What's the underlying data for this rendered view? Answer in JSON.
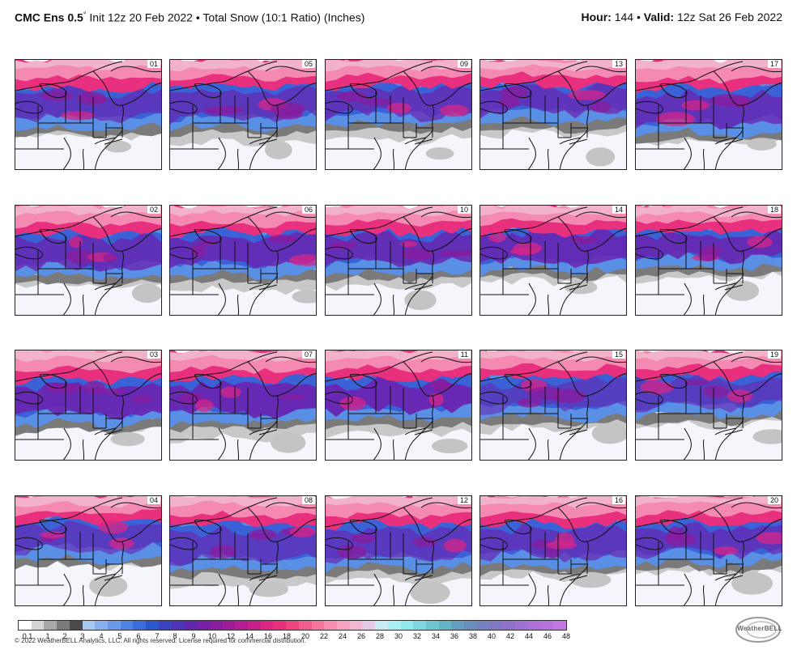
{
  "header": {
    "model_name": "CMC Ens 0.5",
    "degree_symbol": "°",
    "init_text": "Init 12z 20 Feb 2022",
    "bullet": "•",
    "product_text": "Total Snow (10:1 Ratio) (Inches)",
    "hour_label": "Hour:",
    "hour_value": "144",
    "valid_label": "Valid:",
    "valid_value": "12z Sat 26 Feb 2022"
  },
  "map": {
    "region": "Northeast United States",
    "panels": [
      {
        "member": "01",
        "row": 0,
        "col": 0
      },
      {
        "member": "05",
        "row": 0,
        "col": 1
      },
      {
        "member": "09",
        "row": 0,
        "col": 2
      },
      {
        "member": "13",
        "row": 0,
        "col": 3
      },
      {
        "member": "17",
        "row": 0,
        "col": 4
      },
      {
        "member": "02",
        "row": 1,
        "col": 0
      },
      {
        "member": "06",
        "row": 1,
        "col": 1
      },
      {
        "member": "10",
        "row": 1,
        "col": 2
      },
      {
        "member": "14",
        "row": 1,
        "col": 3
      },
      {
        "member": "18",
        "row": 1,
        "col": 4
      },
      {
        "member": "03",
        "row": 2,
        "col": 0
      },
      {
        "member": "07",
        "row": 2,
        "col": 1
      },
      {
        "member": "11",
        "row": 2,
        "col": 2
      },
      {
        "member": "15",
        "row": 2,
        "col": 3
      },
      {
        "member": "19",
        "row": 2,
        "col": 4
      },
      {
        "member": "04",
        "row": 3,
        "col": 0
      },
      {
        "member": "08",
        "row": 3,
        "col": 1
      },
      {
        "member": "12",
        "row": 3,
        "col": 2
      },
      {
        "member": "16",
        "row": 3,
        "col": 3
      },
      {
        "member": "20",
        "row": 3,
        "col": 4
      }
    ]
  },
  "legend": {
    "labels": [
      "0.1",
      "1",
      "2",
      "3",
      "4",
      "5",
      "6",
      "7",
      "8",
      "9",
      "10",
      "12",
      "14",
      "16",
      "18",
      "20",
      "22",
      "24",
      "26",
      "28",
      "30",
      "32",
      "34",
      "36",
      "38",
      "40",
      "42",
      "44",
      "46",
      "48"
    ],
    "colors": [
      "#ffffff",
      "#d6d6d6",
      "#a8a8a8",
      "#7a7a7a",
      "#4a4a4a",
      "#a8c8f4",
      "#88b0ef",
      "#6a98ea",
      "#5082e3",
      "#3a6cdb",
      "#2a58cf",
      "#3a44c2",
      "#4e34b8",
      "#6226ae",
      "#761ea6",
      "#8a1c9e",
      "#a01c98",
      "#b41e92",
      "#c8208a",
      "#dc2684",
      "#ea307c",
      "#f0447e",
      "#f25c8c",
      "#f4749c",
      "#f68cae",
      "#f6a2c0",
      "#f2b8d2",
      "#e6c8e8",
      "#c8ecf6",
      "#a8f0f4",
      "#92e6ec",
      "#7ed6e0",
      "#70c4d4",
      "#66b2c8",
      "#649ebe",
      "#6a8ebc",
      "#7482c0",
      "#8278c6",
      "#9072cc",
      "#9e70d2",
      "#ac70d8",
      "#b872dc",
      "#c278e0"
    ]
  },
  "footer": {
    "copyright": "© 2022 WeatherBELL Analytics, LLC. All rights reserved. License required for commercial distribution.",
    "logo_text": "WeatherBELL"
  }
}
